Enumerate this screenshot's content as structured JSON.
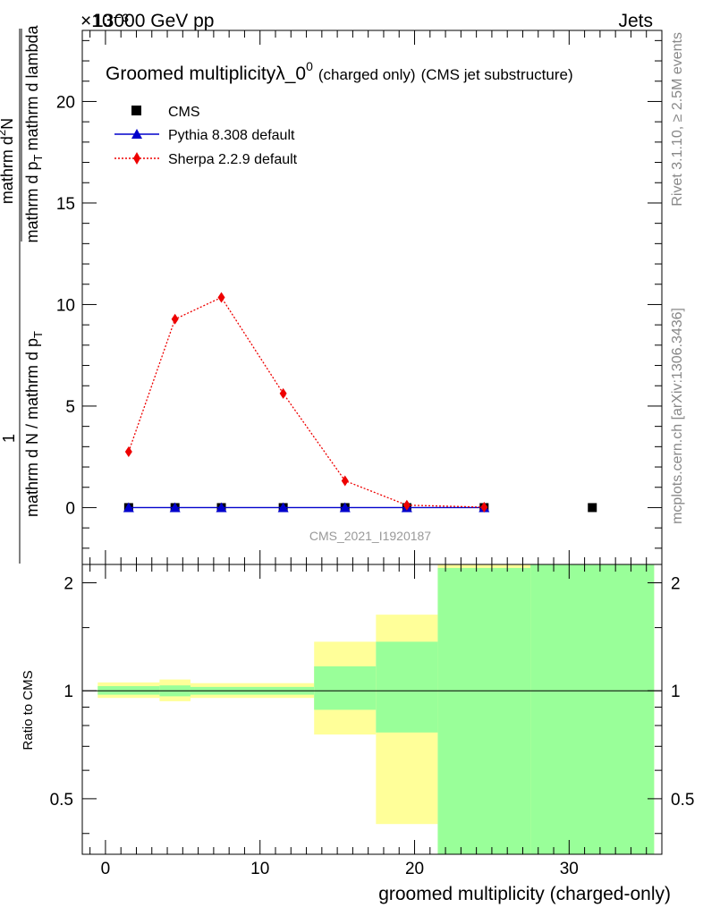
{
  "header": {
    "energy_label": "13000 GeV pp",
    "category_label": "Jets",
    "exponent_label": "×10⁻³"
  },
  "side": {
    "rivet_label": "Rivet 3.1.10, ≥ 2.5M events",
    "mcplots_label": "mcplots.cern.ch [arXiv:1306.3436]"
  },
  "chart_data": [
    {
      "type": "line",
      "title": "Groomed multiplicity",
      "title_symbol": "λ_0",
      "title_superscript": "0",
      "title_suffix_small": "(charged only)",
      "title_suffix": "(CMS jet substructure)",
      "ylabel_frac_numerator": "1",
      "ylabel_frac_denominator": "mathrm d N / mathrm d p",
      "ylabel_fraction_numerator": "mathrm d",
      "ylabel_fraction_numerator_sup": "2",
      "ylabel_fraction_numerator_tail": "N",
      "ylabel_fraction_denominator": "mathrm d p",
      "ylabel_fraction_denominator_sub": "T",
      "ylabel_fraction_denominator_tail": "mathrm d lambda",
      "ylabel_sub": "T",
      "ylim": [
        -2.8,
        23.5
      ],
      "yticks": [
        0,
        5,
        10,
        15,
        20
      ],
      "ytick_labels": [
        "0",
        "5",
        "10",
        "15",
        "20"
      ],
      "y_multiplier": "×10⁻³",
      "xlim": [
        -1.5,
        36
      ],
      "watermark": "CMS_2021_I1920187",
      "legend_position": "top-left",
      "series": [
        {
          "name": "CMS",
          "color": "#000000",
          "marker": "square",
          "x": [
            1.5,
            4.5,
            7.5,
            11.5,
            15.5,
            19.5,
            24.5,
            31.5
          ],
          "values": [
            0,
            0,
            0,
            0,
            0,
            0,
            0,
            0
          ]
        },
        {
          "name": "Pythia 8.308 default",
          "color": "#0000cc",
          "marker": "triangle",
          "line": "solid",
          "x": [
            1.5,
            4.5,
            7.5,
            11.5,
            15.5,
            19.5,
            24.5
          ],
          "values": [
            0,
            0,
            0,
            0,
            0,
            0,
            0
          ]
        },
        {
          "name": "Sherpa 2.2.9 default",
          "color": "#ee0000",
          "marker": "diamond",
          "line": "dotted",
          "x": [
            1.5,
            4.5,
            7.5,
            11.5,
            15.5,
            19.5,
            24.5
          ],
          "values": [
            2.75,
            9.28,
            10.35,
            5.62,
            1.32,
            0.12,
            0.02
          ]
        }
      ]
    },
    {
      "type": "area",
      "ylabel": "Ratio to CMS",
      "xlabel": "groomed multiplicity (charged-only)",
      "xlim": [
        -1.5,
        36
      ],
      "ylim": [
        0.35,
        2.25
      ],
      "xticks": [
        0,
        10,
        20,
        30
      ],
      "xtick_labels": [
        "0",
        "10",
        "20",
        "30"
      ],
      "yticks": [
        0.5,
        1,
        2
      ],
      "ytick_labels": [
        "0.5",
        "1",
        "2"
      ],
      "scale": "log",
      "reference_line": 1,
      "bands": [
        {
          "x_lo": -0.5,
          "x_hi": 3.5,
          "yellow": [
            0.955,
            1.055
          ],
          "green": [
            0.975,
            1.03
          ]
        },
        {
          "x_lo": 3.5,
          "x_hi": 5.5,
          "yellow": [
            0.935,
            1.075
          ],
          "green": [
            0.965,
            1.035
          ]
        },
        {
          "x_lo": 5.5,
          "x_hi": 13.5,
          "yellow": [
            0.955,
            1.05
          ],
          "green": [
            0.975,
            1.025
          ]
        },
        {
          "x_lo": 13.5,
          "x_hi": 17.5,
          "yellow": [
            0.755,
            1.37
          ],
          "green": [
            0.885,
            1.17
          ]
        },
        {
          "x_lo": 17.5,
          "x_hi": 21.5,
          "yellow": [
            0.425,
            1.63
          ],
          "green": [
            0.765,
            1.37
          ]
        },
        {
          "x_lo": 21.5,
          "x_hi": 27.5,
          "yellow": [
            0.35,
            2.25
          ],
          "green": [
            0.35,
            2.2
          ]
        },
        {
          "x_lo": 27.5,
          "x_hi": 35.5,
          "yellow": [
            0.35,
            2.25
          ],
          "green": [
            0.35,
            2.25
          ]
        }
      ]
    }
  ]
}
